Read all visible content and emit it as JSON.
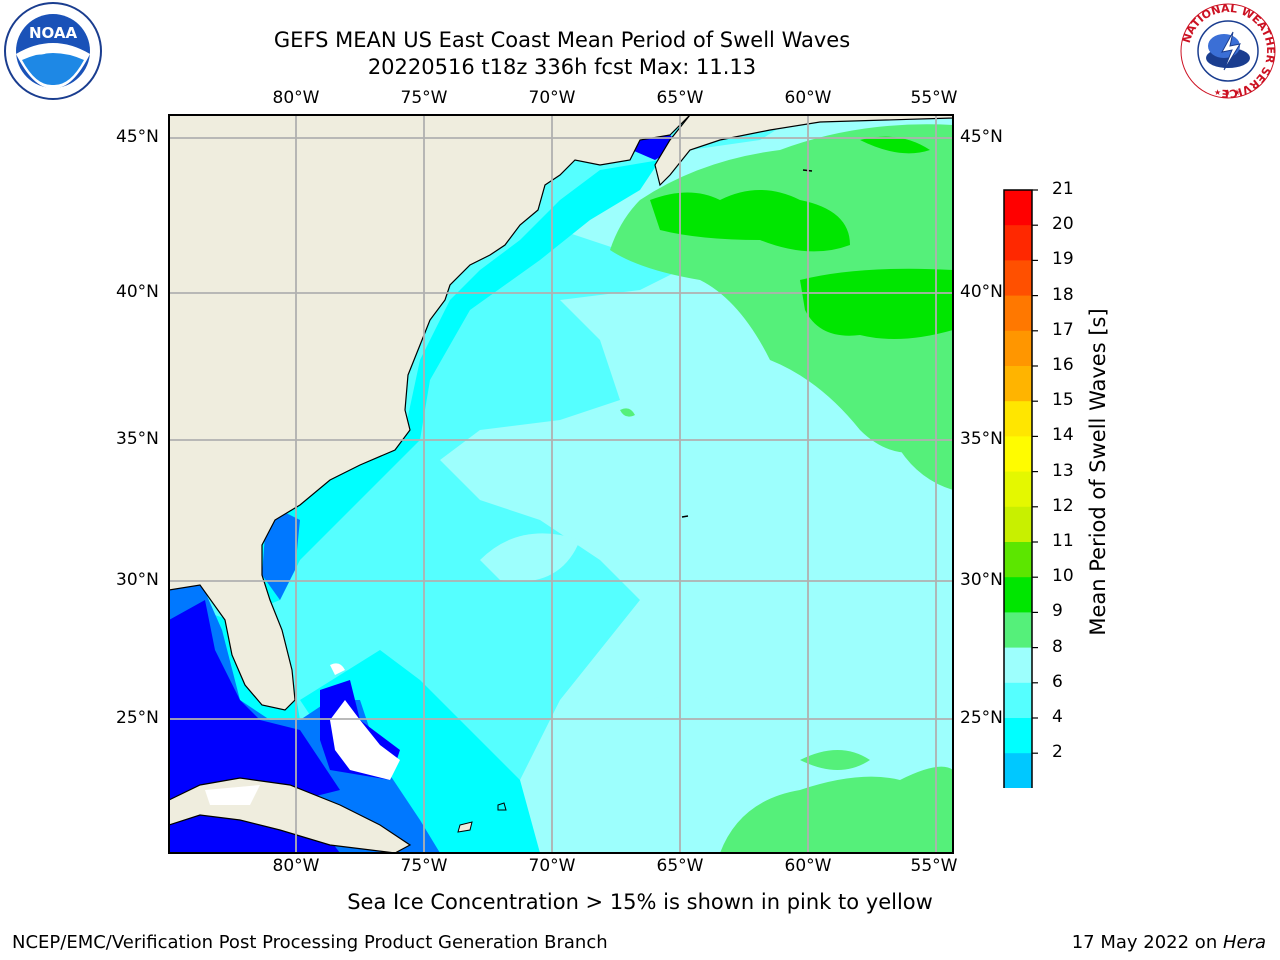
{
  "title_line1": "GEFS MEAN US East Coast Mean Period of Swell Waves",
  "title_line2": "20220516 t18z 336h fcst   Max: 11.13",
  "logos": {
    "left": "NOAA",
    "right_ring_text": "NATIONAL WEATHER SERVICE"
  },
  "longitude_labels": [
    "80°W",
    "75°W",
    "70°W",
    "65°W",
    "60°W",
    "55°W"
  ],
  "latitude_labels": [
    "45°N",
    "40°N",
    "35°N",
    "30°N",
    "25°N"
  ],
  "colorbar": {
    "label": "Mean Period of Swell Waves [s]",
    "ticks": [
      "21",
      "20",
      "19",
      "18",
      "17",
      "16",
      "15",
      "14",
      "13",
      "12",
      "11",
      "10",
      "9",
      "8",
      "6",
      "4",
      "2"
    ],
    "colors": [
      "#ff0000",
      "#ff2800",
      "#ff5000",
      "#ff7800",
      "#ff9600",
      "#ffb400",
      "#ffe600",
      "#fffc00",
      "#e4f800",
      "#c8f000",
      "#5ce600",
      "#00e600",
      "#55f07a",
      "#9dfffd",
      "#55ffff",
      "#00ffff",
      "#00c8ff",
      "#0078ff",
      "#0000ff"
    ]
  },
  "map_data": {
    "projection": "cylindrical",
    "lon_range": [
      -85,
      -54
    ],
    "lat_range": [
      20.5,
      46
    ],
    "max_value": 11.13
  },
  "note": "Sea Ice Concentration > 15% is shown in pink to yellow",
  "footer_left": "NCEP/EMC/Verification Post Processing Product Generation Branch",
  "footer_date": "17 May 2022 on ",
  "footer_host": "Hera"
}
